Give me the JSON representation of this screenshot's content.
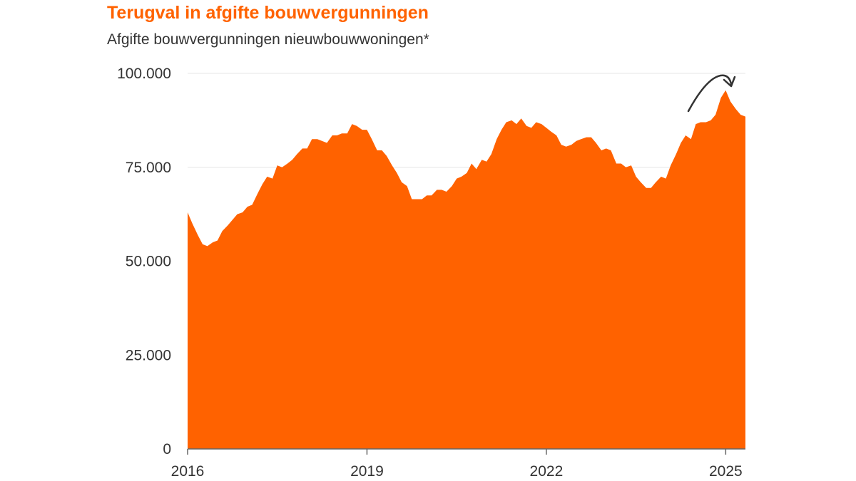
{
  "title": "Terugval in afgifte bouwvergunningen",
  "subtitle": "Afgifte bouwvergunningen nieuwbouwwoningen*",
  "colors": {
    "area": "#FF6200",
    "title": "#FF6200",
    "text": "#333333",
    "grid": "#E6E6E6",
    "axis": "#666666",
    "arrow": "#333333"
  },
  "annotation": {
    "icon": "curved-arrow-down-icon"
  },
  "chart_data": {
    "type": "area",
    "title": "Terugval in afgifte bouwvergunningen",
    "subtitle": "Afgifte bouwvergunningen nieuwbouwwoningen*",
    "xlabel": "",
    "ylabel": "",
    "xlim": [
      2016.0,
      2025.33
    ],
    "ylim": [
      0,
      100000
    ],
    "grid": "horizontal",
    "legend": "none",
    "x_ticks": [
      {
        "value": 2016,
        "label": "2016"
      },
      {
        "value": 2019,
        "label": "2019"
      },
      {
        "value": 2022,
        "label": "2022"
      },
      {
        "value": 2025,
        "label": "2025"
      }
    ],
    "y_ticks": [
      {
        "value": 0,
        "label": "0"
      },
      {
        "value": 25000,
        "label": "25.000"
      },
      {
        "value": 50000,
        "label": "50.000"
      },
      {
        "value": 75000,
        "label": "75.000"
      },
      {
        "value": 100000,
        "label": "100.000"
      }
    ],
    "series": [
      {
        "x": [
          2016.0,
          2016.08,
          2016.17,
          2016.25,
          2016.33,
          2016.42,
          2016.5,
          2016.58,
          2016.67,
          2016.75,
          2016.83,
          2016.92,
          2017.0,
          2017.08,
          2017.17,
          2017.25,
          2017.33,
          2017.42,
          2017.5,
          2017.58,
          2017.67,
          2017.75,
          2017.83,
          2017.92,
          2018.0,
          2018.08,
          2018.17,
          2018.25,
          2018.33,
          2018.42,
          2018.5,
          2018.58,
          2018.67,
          2018.75,
          2018.83,
          2018.92,
          2019.0,
          2019.08,
          2019.17,
          2019.25,
          2019.33,
          2019.42,
          2019.5,
          2019.58,
          2019.67,
          2019.75,
          2019.83,
          2019.92,
          2020.0,
          2020.08,
          2020.17,
          2020.25,
          2020.33,
          2020.42,
          2020.5,
          2020.58,
          2020.67,
          2020.75,
          2020.83,
          2020.92,
          2021.0,
          2021.08,
          2021.17,
          2021.25,
          2021.33,
          2021.42,
          2021.5,
          2021.58,
          2021.67,
          2021.75,
          2021.83,
          2021.92,
          2022.0,
          2022.08,
          2022.17,
          2022.25,
          2022.33,
          2022.42,
          2022.5,
          2022.58,
          2022.67,
          2022.75,
          2022.83,
          2022.92,
          2023.0,
          2023.08,
          2023.17,
          2023.25,
          2023.33,
          2023.42,
          2023.5,
          2023.58,
          2023.67,
          2023.75,
          2023.83,
          2023.92,
          2024.0,
          2024.08,
          2024.17,
          2024.25,
          2024.33,
          2024.42,
          2024.5,
          2024.58,
          2024.67,
          2024.75,
          2024.83,
          2024.92,
          2025.0,
          2025.08,
          2025.17,
          2025.25,
          2025.33
        ],
        "values": [
          63000,
          60000,
          57000,
          54500,
          54000,
          55000,
          55500,
          58000,
          59500,
          61000,
          62500,
          63000,
          64500,
          65000,
          68000,
          70500,
          72500,
          72000,
          75500,
          75000,
          76000,
          77000,
          78500,
          80000,
          80000,
          82500,
          82500,
          82000,
          81500,
          83500,
          83500,
          84000,
          84000,
          86500,
          86000,
          85000,
          85000,
          82500,
          79500,
          79500,
          78000,
          75500,
          73500,
          71000,
          70000,
          66500,
          66500,
          66500,
          67500,
          67500,
          69000,
          69000,
          68500,
          70000,
          72000,
          72500,
          73500,
          76000,
          74500,
          77000,
          76500,
          78500,
          82500,
          85000,
          87000,
          87500,
          86500,
          88000,
          86000,
          85500,
          87000,
          86500,
          85500,
          84500,
          83500,
          81000,
          80500,
          81000,
          82000,
          82500,
          83000,
          83000,
          81500,
          79500,
          80000,
          79500,
          76000,
          76000,
          75000,
          75500,
          72500,
          71000,
          69500,
          69500,
          71000,
          72500,
          72000,
          75500,
          78500,
          81500,
          83500,
          82500,
          86500,
          87000,
          87000,
          87500,
          89000,
          93500,
          95500,
          92500,
          90500,
          89000,
          88500
        ]
      }
    ]
  }
}
